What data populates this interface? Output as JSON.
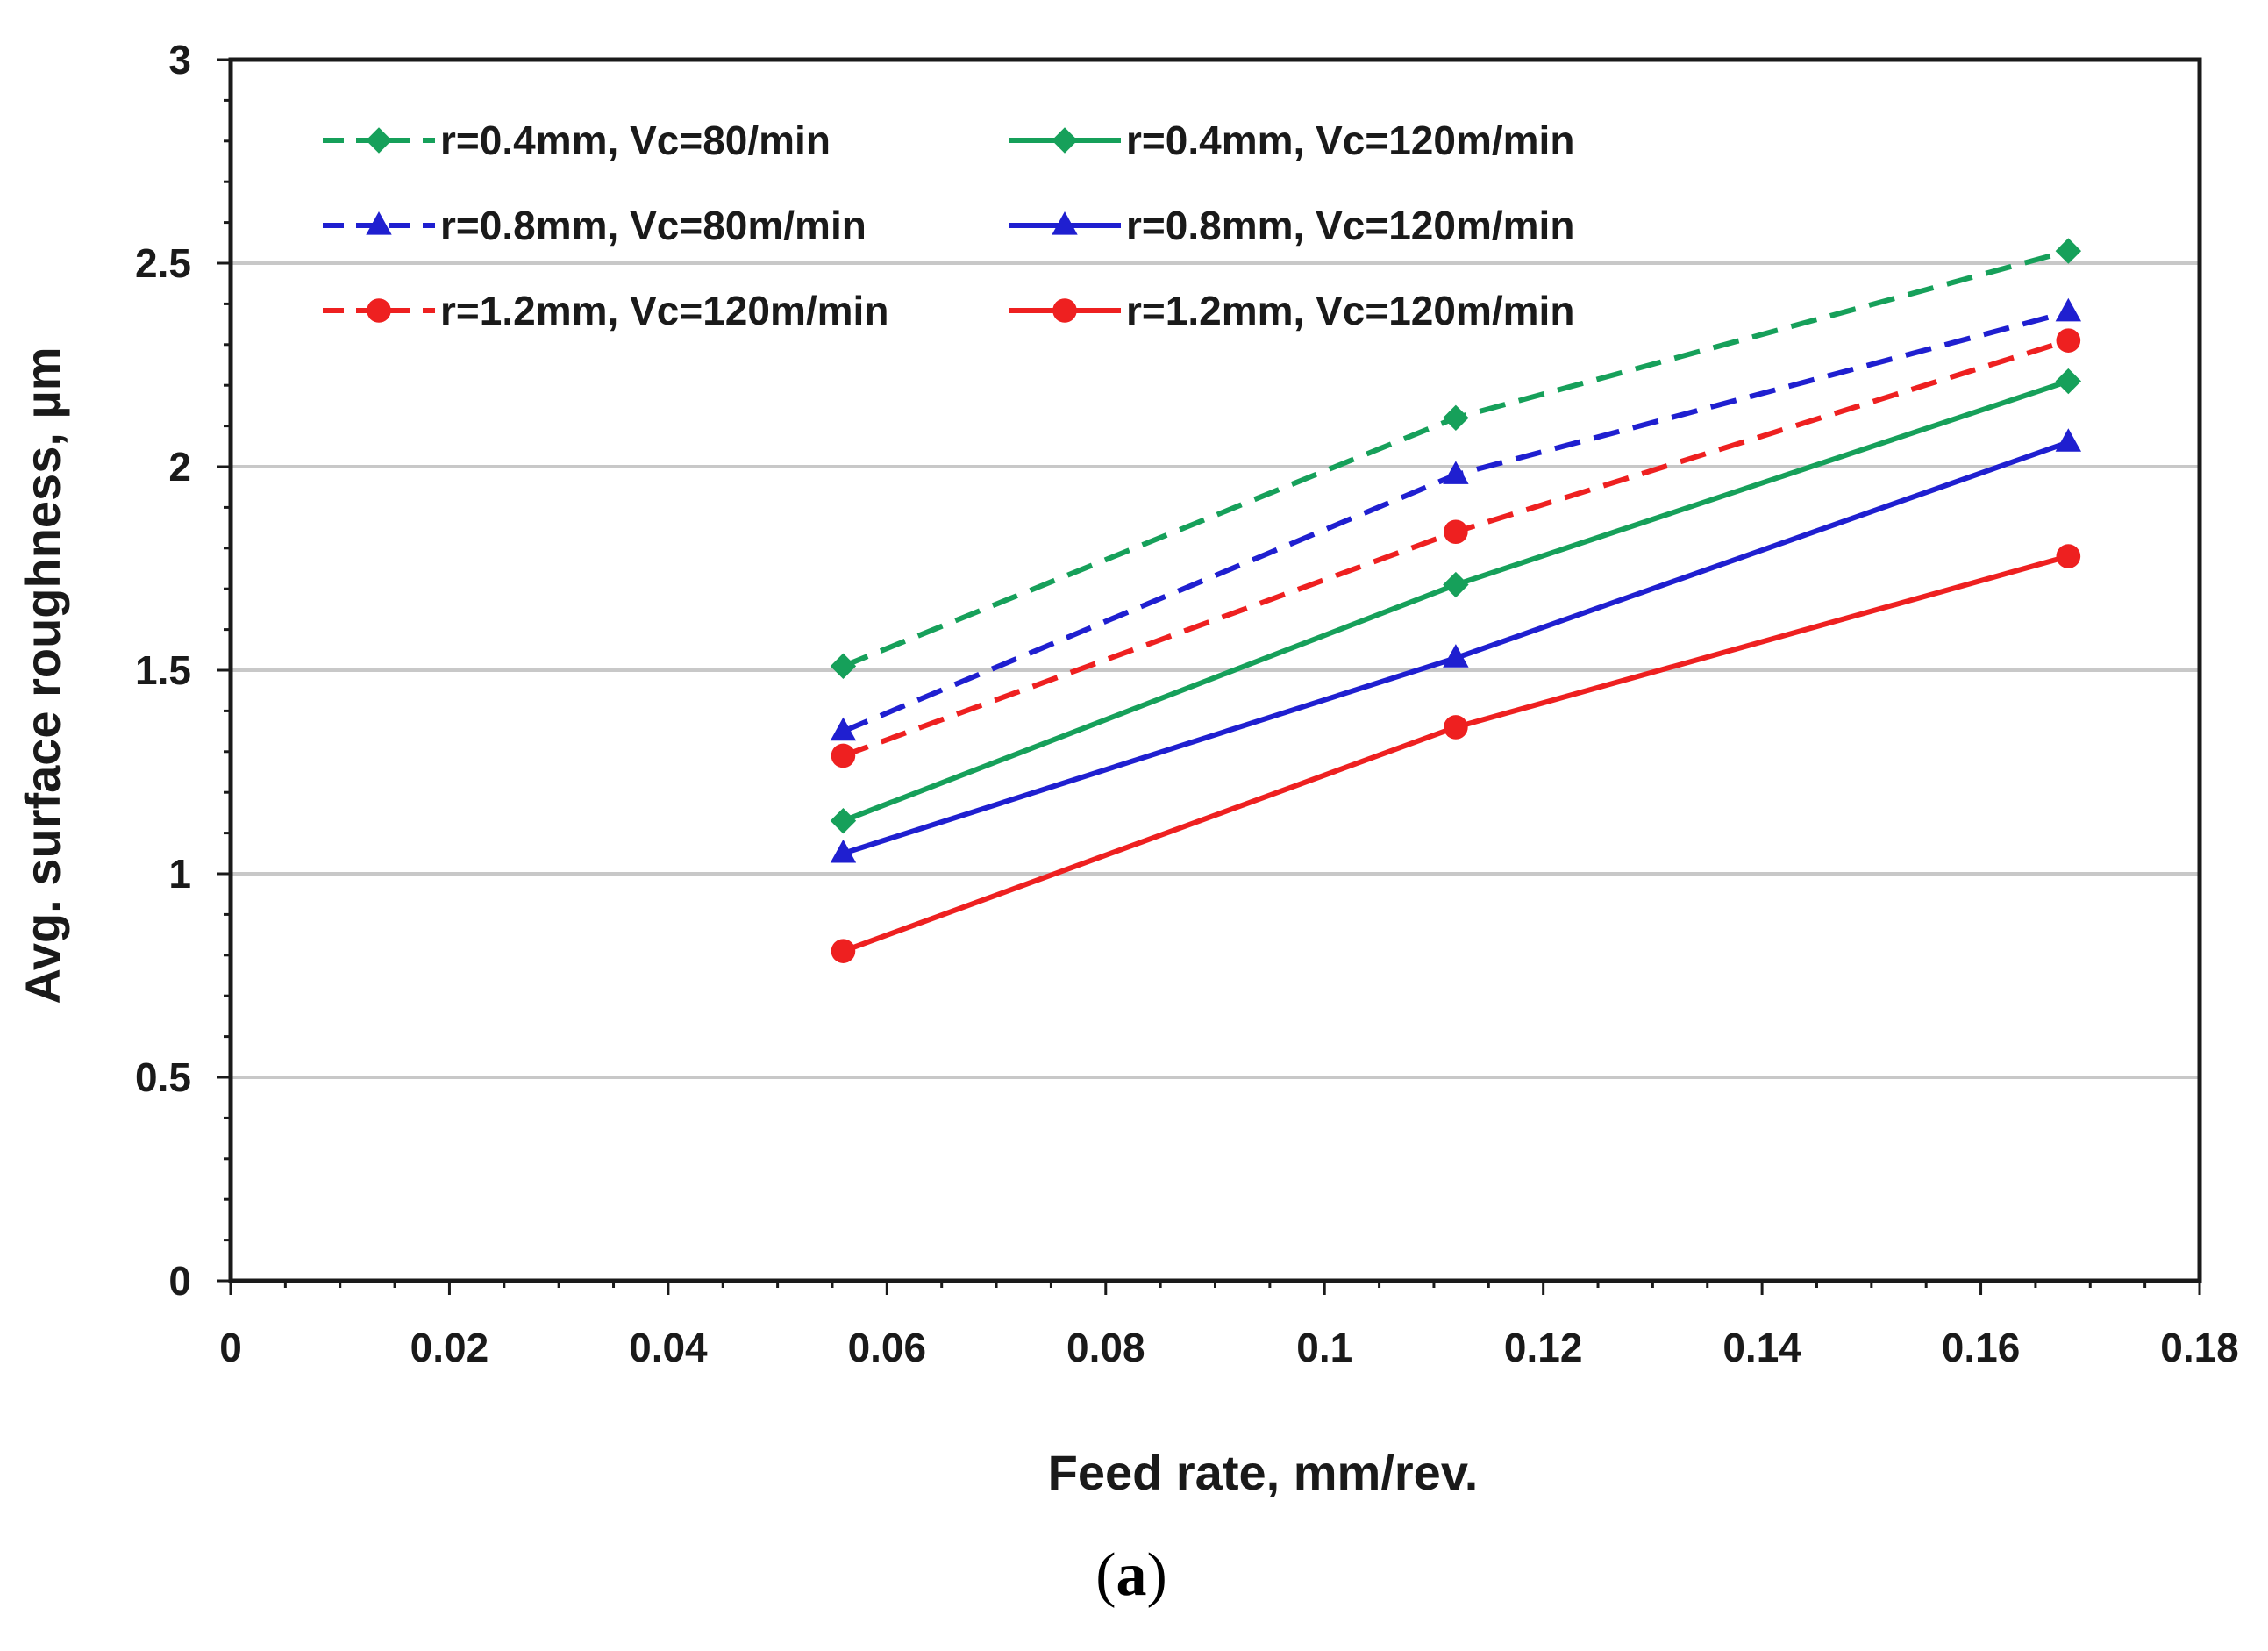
{
  "chart_data": {
    "type": "line",
    "title": "",
    "xlabel": "Feed rate, mm/rev.",
    "ylabel": "Avg. surface roughness, µm",
    "xlim": [
      0,
      0.18
    ],
    "ylim": [
      0,
      3
    ],
    "x_ticks": [
      "0",
      "0.02",
      "0.04",
      "0.06",
      "0.08",
      "0.1",
      "0.12",
      "0.14",
      "0.16",
      "0.18"
    ],
    "x_tick_values": [
      0,
      0.02,
      0.04,
      0.06,
      0.08,
      0.1,
      0.12,
      0.14,
      0.16,
      0.18
    ],
    "y_ticks": [
      "0",
      "0.5",
      "1",
      "1.5",
      "2",
      "2.5",
      "3"
    ],
    "y_tick_values": [
      0,
      0.5,
      1,
      1.5,
      2,
      2.5,
      3
    ],
    "grid": "horizontal",
    "legend_position": "top-left",
    "x": [
      0.056,
      0.112,
      0.168
    ],
    "series": [
      {
        "name": "r=0.4mm, Vc=80/min",
        "values": [
          1.51,
          2.12,
          2.53
        ],
        "color": "#16a05a",
        "dash": true,
        "marker": "diamond"
      },
      {
        "name": "r=0.4mm, Vc=120m/min",
        "values": [
          1.13,
          1.71,
          2.21
        ],
        "color": "#16a05a",
        "dash": false,
        "marker": "diamond"
      },
      {
        "name": "r=0.8mm, Vc=80m/min",
        "values": [
          1.35,
          1.98,
          2.38
        ],
        "color": "#1f1fd0",
        "dash": true,
        "marker": "triangle"
      },
      {
        "name": "r=0.8mm, Vc=120m/min",
        "values": [
          1.05,
          1.53,
          2.06
        ],
        "color": "#1f1fd0",
        "dash": false,
        "marker": "triangle"
      },
      {
        "name": "r=1.2mm, Vc=120m/min",
        "values": [
          1.29,
          1.84,
          2.31
        ],
        "color": "#ee2020",
        "dash": true,
        "marker": "circle"
      },
      {
        "name": "r=1.2mm, Vc=120m/min",
        "values": [
          0.81,
          1.36,
          1.78
        ],
        "color": "#ee2020",
        "dash": false,
        "marker": "circle"
      }
    ]
  },
  "caption": {
    "open": "(",
    "letter": "a",
    "close": ")"
  }
}
